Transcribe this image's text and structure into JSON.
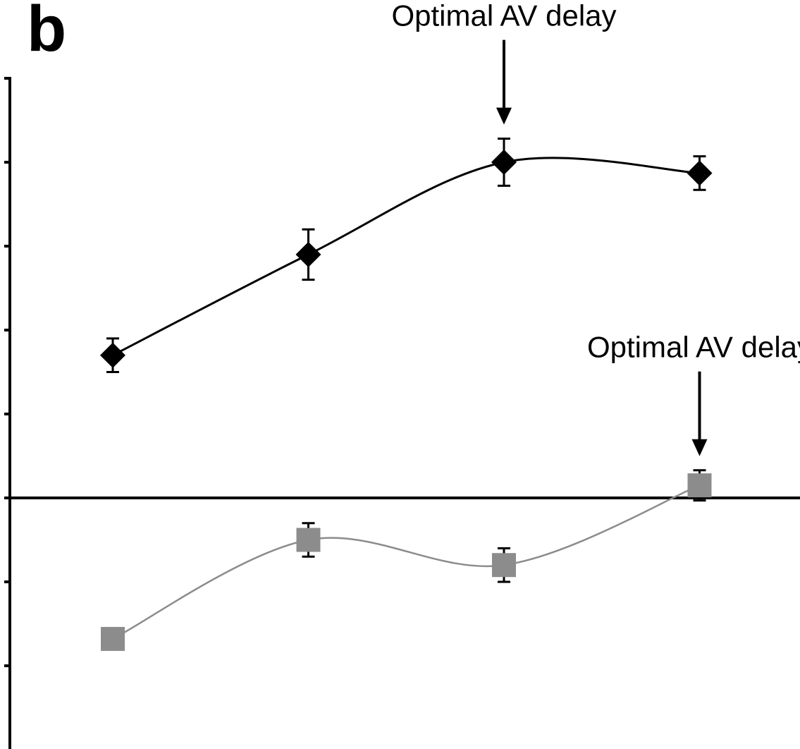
{
  "panel_label": "b",
  "colors": {
    "series_1": "#000000",
    "series_2": "#8c8c8c",
    "axis": "#000000",
    "background": "#ffffff"
  },
  "chart_data": {
    "type": "line",
    "title": "",
    "xlabel": "",
    "ylabel": "",
    "x": [
      1,
      2,
      3,
      4
    ],
    "xlim": [
      0.5,
      4.5
    ],
    "ylim": [
      -3,
      5
    ],
    "y_ticks": [
      -2,
      -1,
      0,
      1,
      2,
      3,
      4,
      5
    ],
    "zero_line": true,
    "grid": false,
    "legend": "none",
    "series": [
      {
        "marker": "diamond",
        "color": "#000000",
        "values": [
          1.7,
          2.9,
          4.0,
          3.87
        ],
        "errors": [
          0.2,
          0.3,
          0.28,
          0.2
        ]
      },
      {
        "marker": "square",
        "color": "#8c8c8c",
        "values": [
          -1.68,
          -0.5,
          -0.8,
          0.15
        ],
        "errors": [
          0.12,
          0.2,
          0.2,
          0.18
        ]
      }
    ],
    "annotations": [
      {
        "text": "Optimal AV delay",
        "series_index": 0,
        "point_index": 2
      },
      {
        "text": "Optimal AV delay",
        "series_index": 1,
        "point_index": 3
      }
    ]
  }
}
